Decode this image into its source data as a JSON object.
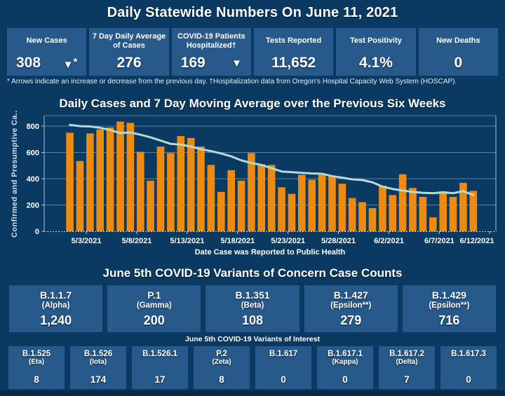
{
  "page": {
    "title": "Daily Statewide Numbers On June 11, 2021",
    "footnote": "* Arrows indicate an increase or decrease from the previous day. †Hospitalization data from Oregon's Hospital Capacity Web System (HOSCAP)."
  },
  "icons": {
    "decrease_arrow": "▼"
  },
  "colors": {
    "background": "#0a3a62",
    "card": "#27598a",
    "bar": "#ee8a10",
    "line": "#b5dad6",
    "gridline": "#5d7e9c",
    "axis_border": "#a7bfd3",
    "bottom_strip": "#08294a"
  },
  "stats": [
    {
      "label": "New Cases",
      "value": "308",
      "arrow": "down",
      "arrow_suffix": "*"
    },
    {
      "label": "7 Day Daily Average of Cases",
      "value": "276"
    },
    {
      "label": "COVID-19 Patients Hospitalized†",
      "value": "169",
      "arrow": "down",
      "arrow_suffix": ""
    },
    {
      "label": "Tests Reported",
      "value": "11,652"
    },
    {
      "label": "Test Positivity",
      "value": "4.1%"
    },
    {
      "label": "New Deaths",
      "value": "0"
    }
  ],
  "chart_data": {
    "type": "bar",
    "title": "Daily Cases and 7 Day Moving Average over the Previous Six Weeks",
    "xlabel": "Date Case was Reported to Public Health",
    "ylabel": "Confirmed and Presumptive Ca..",
    "ylim": [
      0,
      880
    ],
    "yticks": [
      0,
      200,
      400,
      600,
      800
    ],
    "grid": true,
    "legend": "none",
    "x": [
      "5/2/2021",
      "5/3/2021",
      "5/4/2021",
      "5/5/2021",
      "5/6/2021",
      "5/7/2021",
      "5/8/2021",
      "5/9/2021",
      "5/10/2021",
      "5/11/2021",
      "5/12/2021",
      "5/13/2021",
      "5/14/2021",
      "5/15/2021",
      "5/16/2021",
      "5/17/2021",
      "5/18/2021",
      "5/19/2021",
      "5/20/2021",
      "5/21/2021",
      "5/22/2021",
      "5/23/2021",
      "5/24/2021",
      "5/25/2021",
      "5/26/2021",
      "5/27/2021",
      "5/28/2021",
      "5/29/2021",
      "5/30/2021",
      "5/31/2021",
      "6/1/2021",
      "6/2/2021",
      "6/3/2021",
      "6/4/2021",
      "6/5/2021",
      "6/6/2021",
      "6/7/2021",
      "6/8/2021",
      "6/9/2021",
      "6/10/2021",
      "6/11/2021"
    ],
    "x_axis_tick_labels": [
      "5/3/2021",
      "5/8/2021",
      "5/13/2021",
      "5/18/2021",
      "5/23/2021",
      "5/28/2021",
      "6/2/2021",
      "6/7/2021",
      "6/12/2021"
    ],
    "x_axis_tick_day_indexes": [
      1,
      6,
      11,
      16,
      21,
      26,
      31,
      36,
      41
    ],
    "series": [
      {
        "name": "Daily Cases",
        "type": "bar",
        "color": "#ee8a10",
        "values": [
          750,
          535,
          745,
          775,
          790,
          835,
          825,
          605,
          385,
          645,
          595,
          725,
          710,
          645,
          505,
          300,
          465,
          385,
          595,
          510,
          505,
          335,
          285,
          430,
          392,
          430,
          420,
          362,
          253,
          222,
          176,
          347,
          276,
          434,
          330,
          262,
          106,
          305,
          262,
          369,
          308
        ]
      },
      {
        "name": "7 Day Moving Average",
        "type": "line",
        "color": "#b5dad6",
        "values": [
          810,
          800,
          798,
          788,
          770,
          748,
          752,
          735,
          715,
          690,
          665,
          660,
          645,
          625,
          610,
          592,
          570,
          540,
          520,
          505,
          480,
          455,
          450,
          445,
          440,
          438,
          420,
          408,
          395,
          390,
          373,
          340,
          322,
          310,
          300,
          293,
          290,
          296,
          290,
          305,
          276
        ]
      }
    ]
  },
  "variants_of_concern": {
    "title": "June 5th  COVID-19 Variants of Concern Case Counts",
    "cards": [
      {
        "name": "B.1.1.7",
        "subtitle": "(Alpha)",
        "value": "1,240"
      },
      {
        "name": "P.1",
        "subtitle": "(Gamma)",
        "value": "200"
      },
      {
        "name": "B.1.351",
        "subtitle": "(Beta)",
        "value": "108"
      },
      {
        "name": "B.1.427",
        "subtitle": "(Epsilon**)",
        "value": "279"
      },
      {
        "name": "B.1.429",
        "subtitle": "(Epsilon**)",
        "value": "716"
      }
    ]
  },
  "variants_of_interest": {
    "title": "June 5th COVID-19 Variants of Interest",
    "cards": [
      {
        "name": "B.1.525",
        "subtitle": "(Eta)",
        "value": "8"
      },
      {
        "name": "B.1.526",
        "subtitle": "(Iota)",
        "value": "174"
      },
      {
        "name": "B.1.526.1",
        "subtitle": "",
        "value": "17"
      },
      {
        "name": "P.2",
        "subtitle": "(Zeta)",
        "value": "8"
      },
      {
        "name": "B.1.617",
        "subtitle": "",
        "value": "0"
      },
      {
        "name": "B.1.617.1",
        "subtitle": "(Kappa)",
        "value": "0"
      },
      {
        "name": "B.1.617.2",
        "subtitle": "(Delta)",
        "value": "7"
      },
      {
        "name": "B.1.617.3",
        "subtitle": "",
        "value": "0"
      }
    ]
  }
}
